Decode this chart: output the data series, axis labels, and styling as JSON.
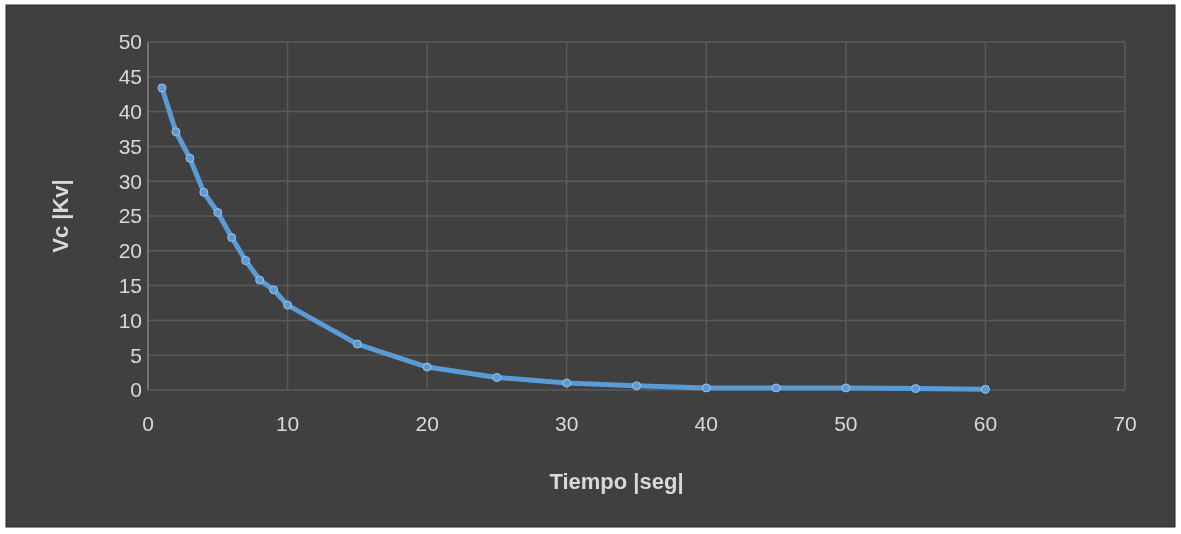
{
  "chart_data": {
    "type": "line",
    "xlabel": "Tiempo |seg|",
    "ylabel": "Vc |Kv|",
    "x": [
      1,
      2,
      3,
      4,
      5,
      6,
      7,
      8,
      9,
      10,
      15,
      20,
      25,
      30,
      35,
      40,
      45,
      50,
      55,
      60
    ],
    "series": [
      {
        "color": "#5b9bd5",
        "values": [
          43.4,
          37.1,
          33.3,
          28.4,
          25.5,
          21.9,
          18.6,
          15.8,
          14.4,
          12.2,
          6.6,
          3.3,
          1.8,
          1.0,
          0.6,
          0.3,
          0.3,
          0.3,
          0.2,
          0.1
        ]
      }
    ],
    "xlim": [
      0,
      70
    ],
    "xticks": [
      0,
      10,
      20,
      30,
      40,
      50,
      60,
      70
    ],
    "ylim": [
      0,
      50
    ],
    "yticks": [
      0,
      5,
      10,
      15,
      20,
      25,
      30,
      35,
      40,
      45,
      50
    ],
    "grid": true,
    "marker": "circle",
    "line_style": "solid"
  }
}
